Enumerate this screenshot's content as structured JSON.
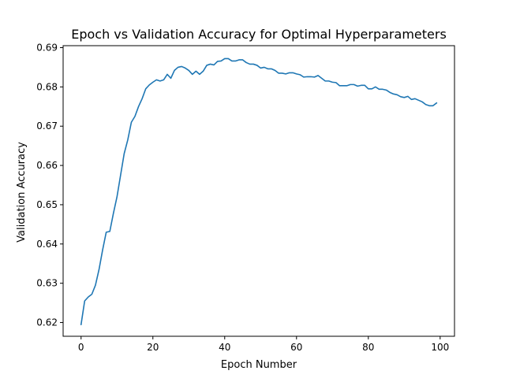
{
  "chart_data": {
    "type": "line",
    "title": "Epoch vs Validation Accuracy for Optimal Hyperparameters",
    "xlabel": "Epoch Number",
    "ylabel": "Validation Accuracy",
    "xlim": [
      -5,
      104
    ],
    "ylim": [
      0.6165,
      0.6905
    ],
    "xticks": [
      0,
      20,
      40,
      60,
      80,
      100
    ],
    "xtick_labels": [
      "0",
      "20",
      "40",
      "60",
      "80",
      "100"
    ],
    "yticks": [
      0.62,
      0.63,
      0.64,
      0.65,
      0.66,
      0.67,
      0.68,
      0.69
    ],
    "ytick_labels": [
      "0.62",
      "0.63",
      "0.64",
      "0.65",
      "0.66",
      "0.67",
      "0.68",
      "0.69"
    ],
    "grid": false,
    "colors": {
      "line": "#1f77b4",
      "axes": "#000000",
      "background": "#ffffff"
    },
    "series": [
      {
        "x": [
          0,
          1,
          2,
          3,
          4,
          5,
          6,
          7,
          8,
          9,
          10,
          11,
          12,
          13,
          14,
          15,
          16,
          17,
          18,
          19,
          20,
          21,
          22,
          23,
          24,
          25,
          26,
          27,
          28,
          29,
          30,
          31,
          32,
          33,
          34,
          35,
          36,
          37,
          38,
          39,
          40,
          41,
          42,
          43,
          44,
          45,
          46,
          47,
          48,
          49,
          50,
          51,
          52,
          53,
          54,
          55,
          56,
          57,
          58,
          59,
          60,
          61,
          62,
          63,
          64,
          65,
          66,
          67,
          68,
          69,
          70,
          71,
          72,
          73,
          74,
          75,
          76,
          77,
          78,
          79,
          80,
          81,
          82,
          83,
          84,
          85,
          86,
          87,
          88,
          89,
          90,
          91,
          92,
          93,
          94,
          95,
          96,
          97,
          98,
          99
        ],
        "values": [
          0.6195,
          0.6255,
          0.6265,
          0.6272,
          0.6295,
          0.6335,
          0.6385,
          0.643,
          0.6432,
          0.6478,
          0.652,
          0.6575,
          0.663,
          0.6665,
          0.671,
          0.6725,
          0.675,
          0.677,
          0.6795,
          0.6805,
          0.6812,
          0.6818,
          0.6815,
          0.6818,
          0.6832,
          0.6822,
          0.6842,
          0.685,
          0.6852,
          0.6848,
          0.6842,
          0.6832,
          0.684,
          0.6832,
          0.684,
          0.6855,
          0.6858,
          0.6856,
          0.6865,
          0.6866,
          0.6872,
          0.6872,
          0.6866,
          0.6866,
          0.6869,
          0.6869,
          0.6862,
          0.6858,
          0.6858,
          0.6855,
          0.6848,
          0.685,
          0.6846,
          0.6846,
          0.6842,
          0.6835,
          0.6835,
          0.6833,
          0.6836,
          0.6836,
          0.6833,
          0.6831,
          0.6825,
          0.6826,
          0.6826,
          0.6825,
          0.6829,
          0.6822,
          0.6815,
          0.6815,
          0.6812,
          0.6811,
          0.6803,
          0.6803,
          0.6803,
          0.6806,
          0.6806,
          0.6802,
          0.6804,
          0.6804,
          0.6795,
          0.6795,
          0.68,
          0.6794,
          0.6794,
          0.6792,
          0.6786,
          0.6782,
          0.678,
          0.6775,
          0.6773,
          0.6776,
          0.6768,
          0.677,
          0.6766,
          0.6762,
          0.6755,
          0.6752,
          0.6752,
          0.6759
        ]
      }
    ]
  }
}
